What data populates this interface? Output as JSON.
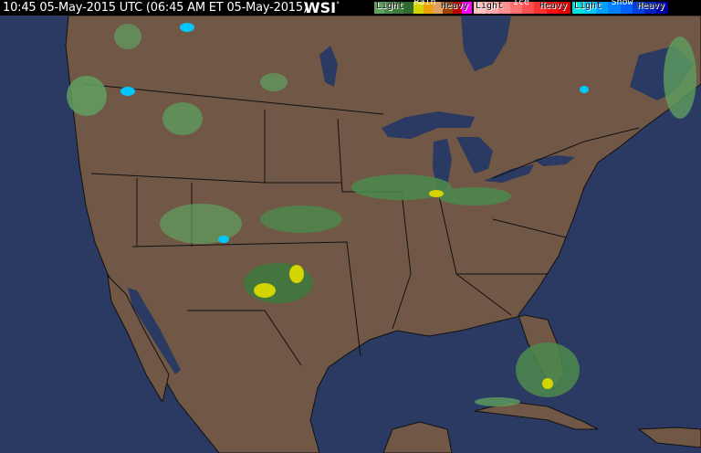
{
  "header": {
    "timestamp": "10:45 05-May-2015 UTC  (06:45 AM ET 05-May-2015)",
    "logo": "WSI",
    "logo_mark": "°"
  },
  "legend": [
    {
      "category": "Rain",
      "light": "Light",
      "heavy": "Heavy",
      "colors": [
        "#5f9f5f",
        "#4c8a4c",
        "#3d7a3d",
        "#2f6a2f",
        "#d4d400",
        "#f0a000",
        "#e0a060",
        "#a04000",
        "#c00000",
        "#ff00ff"
      ]
    },
    {
      "category": "Ice",
      "light": "Light",
      "heavy": "Heavy",
      "colors": [
        "#ffc0c0",
        "#ffa8a8",
        "#ff9090",
        "#ff7070",
        "#ff5050",
        "#ff3030",
        "#ff1010",
        "#e00000"
      ]
    },
    {
      "category": "Snow",
      "light": "Light",
      "heavy": "Heavy",
      "colors": [
        "#00e0e0",
        "#00c8ff",
        "#00a0ff",
        "#0080ff",
        "#0060ff",
        "#0040e0",
        "#0020c0",
        "#0000a0"
      ]
    }
  ],
  "map_colors": {
    "land": "#705746",
    "water": "#2a3a62",
    "border": "#1a1a1a"
  }
}
